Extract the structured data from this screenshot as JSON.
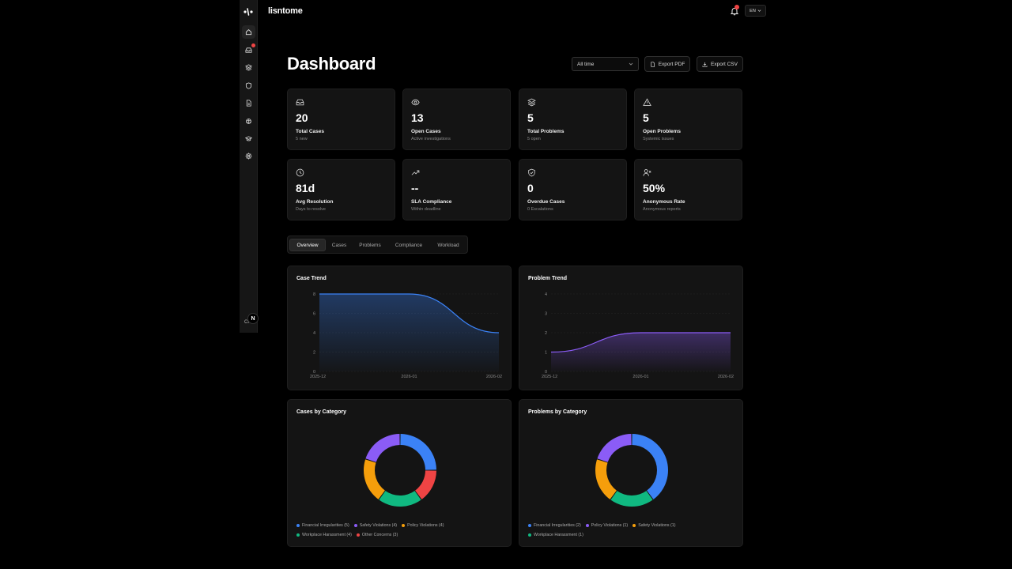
{
  "app": {
    "brand": "lisntome",
    "lang": "EN"
  },
  "sidebar": {
    "items": [
      {
        "icon": "home-icon",
        "active": true
      },
      {
        "icon": "inbox-icon",
        "badge": true
      },
      {
        "icon": "layers-icon"
      },
      {
        "icon": "shield-icon"
      },
      {
        "icon": "document-icon"
      },
      {
        "icon": "brain-icon"
      },
      {
        "icon": "graduation-cap-icon"
      },
      {
        "icon": "settings-icon"
      }
    ],
    "bottom_text": "CH",
    "toggle_label": "N"
  },
  "header": {
    "title": "Dashboard",
    "range_value": "All time",
    "export_pdf": "Export PDF",
    "export_csv": "Export CSV"
  },
  "stats": [
    {
      "icon": "inbox-icon",
      "value": "20",
      "label": "Total Cases",
      "sub": "5 new"
    },
    {
      "icon": "eye-icon",
      "value": "13",
      "label": "Open Cases",
      "sub": "Active investigations"
    },
    {
      "icon": "layers-icon",
      "value": "5",
      "label": "Total Problems",
      "sub": "5 open"
    },
    {
      "icon": "warning-icon",
      "value": "5",
      "label": "Open Problems",
      "sub": "Systemic issues"
    },
    {
      "icon": "clock-icon",
      "value": "81d",
      "label": "Avg Resolution",
      "sub": "Days to resolve"
    },
    {
      "icon": "trend-up-icon",
      "value": "--",
      "label": "SLA Compliance",
      "sub": "Within deadline"
    },
    {
      "icon": "shield-check-icon",
      "value": "0",
      "label": "Overdue Cases",
      "sub": "0 Escalations"
    },
    {
      "icon": "user-x-icon",
      "value": "50%",
      "label": "Anonymous Rate",
      "sub": "Anonymous reports"
    }
  ],
  "tabs": [
    "Overview",
    "Cases",
    "Problems",
    "Compliance",
    "Workload"
  ],
  "colors": {
    "blue": "#3b82f6",
    "purple": "#8b5cf6",
    "orange": "#f59e0b",
    "green": "#10b981",
    "red": "#ef4444"
  },
  "chart_data": [
    {
      "type": "area",
      "title": "Case Trend",
      "x": [
        "2025-12",
        "2026-01",
        "2026-02"
      ],
      "values": [
        8,
        8,
        4
      ],
      "ylim": [
        0,
        8
      ],
      "yticks": [
        0,
        2,
        4,
        6,
        8
      ],
      "color": "#3b82f6"
    },
    {
      "type": "area",
      "title": "Problem Trend",
      "x": [
        "2025-12",
        "2026-01",
        "2026-02"
      ],
      "values": [
        1,
        2,
        2
      ],
      "ylim": [
        0,
        4
      ],
      "yticks": [
        0,
        1,
        2,
        3,
        4
      ],
      "color": "#8b5cf6"
    },
    {
      "type": "pie",
      "title": "Cases by Category",
      "categories": [
        "Financial Irregularities",
        "Safety Violations",
        "Policy Violations",
        "Workplace Harassment",
        "Other Concerns"
      ],
      "values": [
        5,
        4,
        4,
        4,
        3
      ],
      "legend_labels": [
        "Financial Irregularities (5)",
        "Safety Violations (4)",
        "Policy Violations (4)",
        "Workplace Harassment (4)",
        "Other Concerns (3)"
      ],
      "colors": [
        "#3b82f6",
        "#8b5cf6",
        "#f59e0b",
        "#10b981",
        "#ef4444"
      ],
      "slice_order": [
        0,
        4,
        3,
        2,
        1
      ]
    },
    {
      "type": "pie",
      "title": "Problems by Category",
      "categories": [
        "Financial Irregularities",
        "Policy Violations",
        "Safety Violations",
        "Workplace Harassment"
      ],
      "values": [
        2,
        1,
        1,
        1
      ],
      "legend_labels": [
        "Financial Irregularities (2)",
        "Policy Violations (1)",
        "Safety Violations (1)",
        "Workplace Harassment (1)"
      ],
      "colors": [
        "#3b82f6",
        "#8b5cf6",
        "#f59e0b",
        "#10b981"
      ],
      "slice_order": [
        0,
        3,
        2,
        1
      ]
    }
  ]
}
